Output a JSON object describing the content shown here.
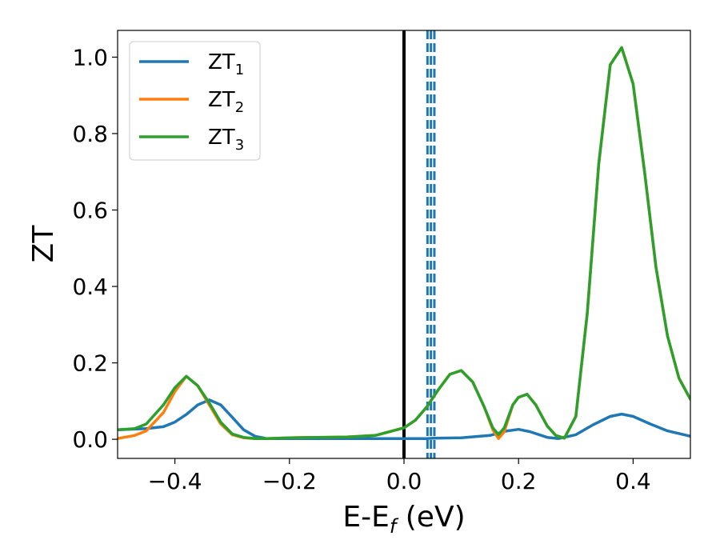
{
  "chart_data": {
    "type": "line",
    "xlabel": "E-E",
    "xlabel_sub": "f",
    "xlabel_unit": " (eV)",
    "ylabel": "ZT",
    "xlim": [
      -0.5,
      0.5
    ],
    "ylim": [
      -0.05,
      1.07
    ],
    "xticks": [
      -0.4,
      -0.2,
      0.0,
      0.2,
      0.4
    ],
    "xtick_labels": [
      "−0.4",
      "−0.2",
      "0.0",
      "0.2",
      "0.4"
    ],
    "yticks": [
      0.0,
      0.2,
      0.4,
      0.6,
      0.8,
      1.0
    ],
    "ytick_labels": [
      "0.0",
      "0.2",
      "0.4",
      "0.6",
      "0.8",
      "1.0"
    ],
    "legend_position": "top-left",
    "vertical_lines": [
      {
        "x": 0.0,
        "style": "solid",
        "color": "#000000"
      },
      {
        "x": 0.041,
        "style": "dashed",
        "color": "#1f77b4"
      },
      {
        "x": 0.047,
        "style": "dashed",
        "color": "#1f77b4"
      },
      {
        "x": 0.053,
        "style": "dashed",
        "color": "#1f77b4"
      }
    ],
    "series": [
      {
        "name": "ZT",
        "sub": "1",
        "color": "#1f77b4",
        "x": [
          -0.5,
          -0.45,
          -0.42,
          -0.4,
          -0.38,
          -0.36,
          -0.34,
          -0.32,
          -0.3,
          -0.28,
          -0.26,
          -0.24,
          -0.2,
          -0.1,
          0.0,
          0.04,
          0.05,
          0.1,
          0.15,
          0.18,
          0.2,
          0.22,
          0.25,
          0.27,
          0.3,
          0.33,
          0.36,
          0.38,
          0.4,
          0.43,
          0.46,
          0.5
        ],
        "y": [
          0.025,
          0.028,
          0.033,
          0.045,
          0.065,
          0.09,
          0.103,
          0.09,
          0.058,
          0.025,
          0.008,
          0.002,
          0.002,
          0.002,
          0.002,
          0.002,
          0.003,
          0.004,
          0.01,
          0.022,
          0.026,
          0.02,
          0.005,
          0.002,
          0.012,
          0.038,
          0.06,
          0.066,
          0.06,
          0.04,
          0.022,
          0.008
        ]
      },
      {
        "name": "ZT",
        "sub": "2",
        "color": "#ff7f0e",
        "x": [
          -0.5,
          -0.47,
          -0.45,
          -0.42,
          -0.4,
          -0.38,
          -0.36,
          -0.34,
          -0.32,
          -0.3,
          -0.28,
          -0.26,
          -0.24,
          -0.2,
          -0.15,
          -0.1,
          -0.05,
          0.0,
          0.02,
          0.04,
          0.06,
          0.08,
          0.1,
          0.12,
          0.14,
          0.155,
          0.165,
          0.175,
          0.19,
          0.2,
          0.215,
          0.23,
          0.25,
          0.265,
          0.28,
          0.3,
          0.32,
          0.34,
          0.36,
          0.38,
          0.4,
          0.42,
          0.44,
          0.46,
          0.48,
          0.5
        ],
        "y": [
          0.002,
          0.01,
          0.022,
          0.07,
          0.125,
          0.165,
          0.14,
          0.09,
          0.04,
          0.012,
          0.004,
          0.002,
          0.002,
          0.004,
          0.005,
          0.006,
          0.01,
          0.03,
          0.05,
          0.085,
          0.13,
          0.17,
          0.18,
          0.15,
          0.085,
          0.025,
          0.002,
          0.02,
          0.09,
          0.11,
          0.118,
          0.09,
          0.035,
          0.01,
          0.003,
          0.06,
          0.33,
          0.72,
          0.98,
          1.025,
          0.93,
          0.7,
          0.45,
          0.27,
          0.16,
          0.105
        ]
      },
      {
        "name": "ZT",
        "sub": "3",
        "color": "#2ca02c",
        "x": [
          -0.5,
          -0.47,
          -0.45,
          -0.42,
          -0.4,
          -0.38,
          -0.36,
          -0.34,
          -0.32,
          -0.3,
          -0.28,
          -0.26,
          -0.24,
          -0.2,
          -0.15,
          -0.1,
          -0.05,
          0.0,
          0.02,
          0.04,
          0.06,
          0.08,
          0.1,
          0.12,
          0.14,
          0.155,
          0.165,
          0.175,
          0.19,
          0.2,
          0.215,
          0.23,
          0.25,
          0.265,
          0.28,
          0.3,
          0.32,
          0.34,
          0.36,
          0.38,
          0.4,
          0.42,
          0.44,
          0.46,
          0.48,
          0.5
        ],
        "y": [
          0.025,
          0.028,
          0.04,
          0.09,
          0.135,
          0.165,
          0.14,
          0.095,
          0.045,
          0.014,
          0.005,
          0.002,
          0.002,
          0.004,
          0.005,
          0.006,
          0.01,
          0.03,
          0.05,
          0.085,
          0.13,
          0.17,
          0.18,
          0.15,
          0.085,
          0.03,
          0.012,
          0.03,
          0.09,
          0.11,
          0.118,
          0.09,
          0.035,
          0.01,
          0.003,
          0.06,
          0.33,
          0.72,
          0.98,
          1.025,
          0.93,
          0.7,
          0.45,
          0.27,
          0.16,
          0.105
        ]
      }
    ]
  }
}
